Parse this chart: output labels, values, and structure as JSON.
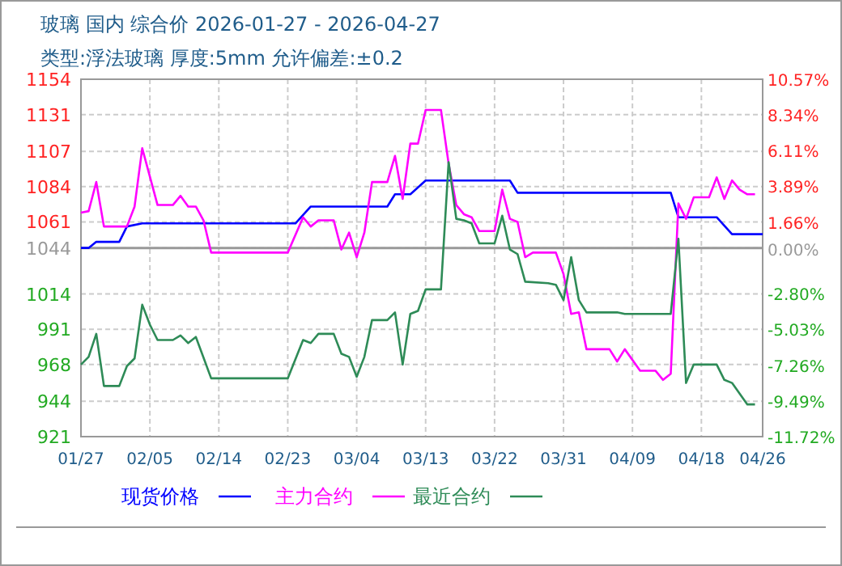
{
  "chart_data": {
    "type": "line",
    "title": "玻璃 国内 综合价 2026-01-27 - 2026-04-27",
    "subtitle": "类型:浮法玻璃 厚度:5mm 允许偏差:±0.2",
    "xlim": [
      "2026-01-27",
      "2026-04-26"
    ],
    "xticks": [
      {
        "value": "2026-01-27",
        "label": "01/27"
      },
      {
        "value": "2026-02-05",
        "label": "02/05"
      },
      {
        "value": "2026-02-14",
        "label": "02/14"
      },
      {
        "value": "2026-02-23",
        "label": "02/23"
      },
      {
        "value": "2026-03-04",
        "label": "03/04"
      },
      {
        "value": "2026-03-13",
        "label": "03/13"
      },
      {
        "value": "2026-03-22",
        "label": "03/22"
      },
      {
        "value": "2026-03-31",
        "label": "03/31"
      },
      {
        "value": "2026-04-09",
        "label": "04/09"
      },
      {
        "value": "2026-04-18",
        "label": "04/18"
      },
      {
        "value": "2026-04-26",
        "label": "04/26"
      }
    ],
    "ylim": [
      921,
      1154
    ],
    "yticks": [
      921,
      944,
      968,
      991,
      1014,
      1044,
      1061,
      1084,
      1107,
      1131,
      1154
    ],
    "y2lim": [
      -11.72,
      10.57
    ],
    "y2ticks": [
      {
        "value": -11.72,
        "label": "-11.72%"
      },
      {
        "value": -9.49,
        "label": "-9.49%"
      },
      {
        "value": -7.26,
        "label": "-7.26%"
      },
      {
        "value": -5.03,
        "label": "-5.03%"
      },
      {
        "value": -2.8,
        "label": "-2.80%"
      },
      {
        "value": 0,
        "label": "0.00%"
      },
      {
        "value": 1.66,
        "label": "1.66%"
      },
      {
        "value": 3.89,
        "label": "3.89%"
      },
      {
        "value": 6.11,
        "label": "6.11%"
      },
      {
        "value": 8.34,
        "label": "8.34%"
      },
      {
        "value": 10.57,
        "label": "10.57%"
      }
    ],
    "grid": true,
    "legend": "bottom",
    "line_style": "solid",
    "marker": "none",
    "ref_lines": [
      {
        "axis": "y",
        "value": 1044,
        "color": "#999999"
      }
    ],
    "series": [
      {
        "name": "现货价格",
        "color": "#0000ff",
        "x": [
          "2026-01-27",
          "2026-01-28",
          "2026-01-29",
          "2026-02-01",
          "2026-02-02",
          "2026-02-04",
          "2026-02-24",
          "2026-02-26",
          "2026-03-08",
          "2026-03-09",
          "2026-03-11",
          "2026-03-13",
          "2026-03-24",
          "2026-03-25",
          "2026-04-14",
          "2026-04-15",
          "2026-04-20",
          "2026-04-22",
          "2026-04-26"
        ],
        "values": [
          1044,
          1044,
          1048,
          1048,
          1058,
          1060,
          1060,
          1071,
          1071,
          1079,
          1079,
          1088,
          1088,
          1080,
          1080,
          1064,
          1064,
          1053,
          1053
        ]
      },
      {
        "name": "主力合约",
        "color": "#ff00ff",
        "x": [
          "2026-01-27",
          "2026-01-28",
          "2026-01-29",
          "2026-01-30",
          "2026-02-02",
          "2026-02-03",
          "2026-02-04",
          "2026-02-06",
          "2026-02-08",
          "2026-02-09",
          "2026-02-10",
          "2026-02-11",
          "2026-02-12",
          "2026-02-13",
          "2026-02-23",
          "2026-02-25",
          "2026-02-26",
          "2026-02-27",
          "2026-03-01",
          "2026-03-02",
          "2026-03-03",
          "2026-03-04",
          "2026-03-05",
          "2026-03-06",
          "2026-03-08",
          "2026-03-09",
          "2026-03-10",
          "2026-03-11",
          "2026-03-12",
          "2026-03-13",
          "2026-03-15",
          "2026-03-16",
          "2026-03-17",
          "2026-03-18",
          "2026-03-19",
          "2026-03-20",
          "2026-03-22",
          "2026-03-23",
          "2026-03-24",
          "2026-03-25",
          "2026-03-26",
          "2026-03-27",
          "2026-03-30",
          "2026-03-31",
          "2026-04-01",
          "2026-04-02",
          "2026-04-03",
          "2026-04-06",
          "2026-04-07",
          "2026-04-08",
          "2026-04-10",
          "2026-04-12",
          "2026-04-13",
          "2026-04-14",
          "2026-04-15",
          "2026-04-16",
          "2026-04-17",
          "2026-04-19",
          "2026-04-20",
          "2026-04-21",
          "2026-04-22",
          "2026-04-23",
          "2026-04-24",
          "2026-04-25"
        ],
        "values": [
          1067,
          1068,
          1087,
          1058,
          1058,
          1071,
          1109,
          1072,
          1072,
          1078,
          1071,
          1071,
          1062,
          1041,
          1041,
          1064,
          1058,
          1062,
          1062,
          1043,
          1054,
          1038,
          1054,
          1087,
          1087,
          1104,
          1076,
          1112,
          1112,
          1134,
          1134,
          1099,
          1072,
          1066,
          1064,
          1055,
          1055,
          1082,
          1063,
          1061,
          1038,
          1041,
          1041,
          1027,
          1001,
          1002,
          978,
          978,
          970,
          978,
          964,
          964,
          958,
          962,
          1073,
          1063,
          1077,
          1077,
          1090,
          1076,
          1088,
          1082,
          1079,
          1079
        ]
      },
      {
        "name": "最近合约",
        "color": "#2e8b57",
        "x": [
          "2026-01-27",
          "2026-01-28",
          "2026-01-29",
          "2026-01-30",
          "2026-02-01",
          "2026-02-02",
          "2026-02-03",
          "2026-02-04",
          "2026-02-05",
          "2026-02-06",
          "2026-02-08",
          "2026-02-09",
          "2026-02-10",
          "2026-02-11",
          "2026-02-13",
          "2026-02-23",
          "2026-02-25",
          "2026-02-26",
          "2026-02-27",
          "2026-03-01",
          "2026-03-02",
          "2026-03-03",
          "2026-03-04",
          "2026-03-05",
          "2026-03-06",
          "2026-03-08",
          "2026-03-09",
          "2026-03-10",
          "2026-03-11",
          "2026-03-12",
          "2026-03-13",
          "2026-03-15",
          "2026-03-16",
          "2026-03-17",
          "2026-03-18",
          "2026-03-19",
          "2026-03-20",
          "2026-03-22",
          "2026-03-23",
          "2026-03-24",
          "2026-03-25",
          "2026-03-26",
          "2026-03-29",
          "2026-03-30",
          "2026-03-31",
          "2026-04-01",
          "2026-04-02",
          "2026-04-03",
          "2026-04-07",
          "2026-04-08",
          "2026-04-14",
          "2026-04-15",
          "2026-04-16",
          "2026-04-17",
          "2026-04-20",
          "2026-04-21",
          "2026-04-22",
          "2026-04-24",
          "2026-04-25"
        ],
        "values": [
          968,
          973,
          988,
          954,
          954,
          967,
          972,
          1007,
          994,
          984,
          984,
          987,
          982,
          986,
          959,
          959,
          984,
          982,
          988,
          988,
          975,
          973,
          960,
          973,
          997,
          997,
          1002,
          968,
          1001,
          1003,
          1017,
          1017,
          1100,
          1063,
          1062,
          1060,
          1047,
          1047,
          1065,
          1043,
          1040,
          1022,
          1021,
          1020,
          1010,
          1038,
          1010,
          1002,
          1002,
          1001,
          1001,
          1050,
          956,
          968,
          968,
          958,
          956,
          942,
          942
        ]
      }
    ]
  }
}
